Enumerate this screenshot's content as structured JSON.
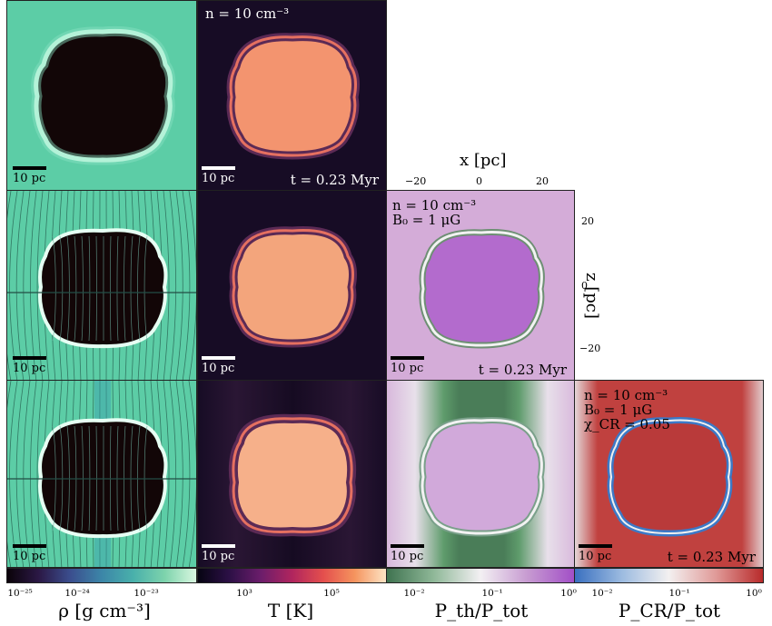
{
  "scale_bar_label": "10 pc",
  "top_row": {
    "density_label": "n = 10 cm⁻³",
    "time_label": "t = 0.23 Myr"
  },
  "middle_row": {
    "density_label": "n = 10 cm⁻³",
    "field_label": "B₀ = 1 μG",
    "time_label": "t = 0.23 Myr"
  },
  "bottom_row": {
    "density_label": "n = 10 cm⁻³",
    "field_label": "B₀ = 1 μG",
    "chi_label": "χ_CR = 0.05",
    "time_label": "t = 0.23 Myr"
  },
  "axes": {
    "x_label": "x [pc]",
    "z_label": "z [pc]",
    "x_ticks": [
      "−20",
      "0",
      "20"
    ],
    "z_ticks": [
      "20",
      "0",
      "−20"
    ]
  },
  "colorbars": [
    {
      "label": "ρ [g cm⁻³]",
      "ticks": [
        "10⁻²⁵",
        "10⁻²⁴",
        "10⁻²³"
      ]
    },
    {
      "label": "T [K]",
      "ticks": [
        "10³",
        "10⁵"
      ]
    },
    {
      "label": "P_th/P_tot",
      "ticks": [
        "10⁻²",
        "10⁻¹",
        "10⁰"
      ]
    },
    {
      "label": "P_CR/P_tot",
      "ticks": [
        "10⁻²",
        "10⁻¹",
        "10⁰"
      ]
    }
  ],
  "colors": {
    "density_bg": "#5ccda6",
    "density_void": "#120607",
    "temperature_bg": "#170c25",
    "temperature_core": "#f3946f",
    "pth_bg": "#d4acd8",
    "pth_core": "#b36bcd",
    "pth_low": "#4a7d58",
    "pcr_bg": "#c0413f",
    "pcr_core": "#b93a3a",
    "pcr_shell": "#3c79c7"
  }
}
